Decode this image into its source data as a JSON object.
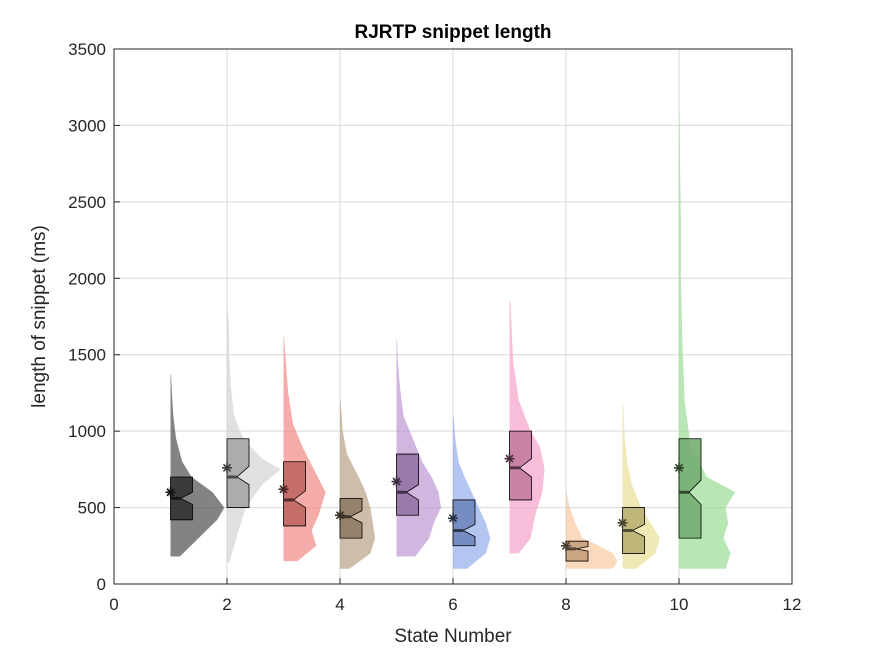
{
  "chart_data": {
    "type": "violin",
    "title": "RJRTP snippet length",
    "xlabel": "State Number",
    "ylabel": "length of snippet (ms)",
    "xlim": [
      0,
      12
    ],
    "ylim": [
      0,
      3500
    ],
    "xticks": [
      "0",
      "2",
      "4",
      "6",
      "8",
      "10",
      "12"
    ],
    "yticks": [
      "0",
      "500",
      "1000",
      "1500",
      "2000",
      "2500",
      "3000",
      "3500"
    ],
    "grid": true,
    "categories": [
      1,
      2,
      3,
      4,
      5,
      6,
      7,
      8,
      9,
      10
    ],
    "series": [
      {
        "x": 1,
        "color": "#404040",
        "min": 180,
        "max": 1370,
        "mean": 600,
        "median": 560,
        "q1": 420,
        "q3": 700,
        "notch_low": 520,
        "notch_high": 600,
        "density": [
          [
            180,
            0.2
          ],
          [
            300,
            0.6
          ],
          [
            420,
            1.0
          ],
          [
            500,
            1.15
          ],
          [
            600,
            0.9
          ],
          [
            700,
            0.45
          ],
          [
            800,
            0.25
          ],
          [
            950,
            0.12
          ],
          [
            1100,
            0.06
          ],
          [
            1250,
            0.03
          ],
          [
            1370,
            0.01
          ]
        ]
      },
      {
        "x": 2,
        "color": "#cfcfcf",
        "min": 140,
        "max": 1800,
        "mean": 760,
        "median": 700,
        "q1": 500,
        "q3": 950,
        "notch_low": 650,
        "notch_high": 770,
        "density": [
          [
            140,
            0.05
          ],
          [
            300,
            0.2
          ],
          [
            500,
            0.4
          ],
          [
            650,
            0.75
          ],
          [
            750,
            1.15
          ],
          [
            820,
            0.75
          ],
          [
            950,
            0.35
          ],
          [
            1100,
            0.15
          ],
          [
            1300,
            0.08
          ],
          [
            1500,
            0.05
          ],
          [
            1700,
            0.04
          ],
          [
            1800,
            0.01
          ]
        ]
      },
      {
        "x": 3,
        "color": "#f07f7a",
        "min": 150,
        "max": 1620,
        "mean": 620,
        "median": 550,
        "q1": 380,
        "q3": 800,
        "notch_low": 500,
        "notch_high": 610,
        "density": [
          [
            150,
            0.3
          ],
          [
            250,
            0.7
          ],
          [
            350,
            0.6
          ],
          [
            450,
            0.75
          ],
          [
            600,
            0.9
          ],
          [
            750,
            0.65
          ],
          [
            900,
            0.4
          ],
          [
            1050,
            0.2
          ],
          [
            1250,
            0.1
          ],
          [
            1450,
            0.05
          ],
          [
            1620,
            0.01
          ]
        ]
      },
      {
        "x": 4,
        "color": "#b39a7c",
        "min": 100,
        "max": 1200,
        "mean": 450,
        "median": 440,
        "q1": 300,
        "q3": 560,
        "notch_low": 400,
        "notch_high": 480,
        "density": [
          [
            100,
            0.2
          ],
          [
            200,
            0.65
          ],
          [
            300,
            0.75
          ],
          [
            400,
            0.7
          ],
          [
            500,
            0.65
          ],
          [
            600,
            0.55
          ],
          [
            700,
            0.4
          ],
          [
            850,
            0.15
          ],
          [
            1000,
            0.06
          ],
          [
            1200,
            0.01
          ]
        ]
      },
      {
        "x": 5,
        "color": "#b98fd0",
        "min": 180,
        "max": 1600,
        "mean": 670,
        "median": 600,
        "q1": 450,
        "q3": 850,
        "notch_low": 550,
        "notch_high": 650,
        "density": [
          [
            180,
            0.4
          ],
          [
            300,
            0.7
          ],
          [
            400,
            0.8
          ],
          [
            500,
            0.95
          ],
          [
            600,
            0.9
          ],
          [
            700,
            0.75
          ],
          [
            800,
            0.55
          ],
          [
            950,
            0.35
          ],
          [
            1100,
            0.15
          ],
          [
            1300,
            0.07
          ],
          [
            1450,
            0.03
          ],
          [
            1600,
            0.01
          ]
        ]
      },
      {
        "x": 6,
        "color": "#8aa8ea",
        "min": 100,
        "max": 1100,
        "mean": 430,
        "median": 350,
        "q1": 250,
        "q3": 550,
        "notch_low": 310,
        "notch_high": 390,
        "density": [
          [
            100,
            0.3
          ],
          [
            200,
            0.7
          ],
          [
            300,
            0.8
          ],
          [
            400,
            0.7
          ],
          [
            500,
            0.55
          ],
          [
            600,
            0.4
          ],
          [
            700,
            0.25
          ],
          [
            800,
            0.12
          ],
          [
            950,
            0.05
          ],
          [
            1100,
            0.01
          ]
        ]
      },
      {
        "x": 7,
        "color": "#f59ac4",
        "min": 200,
        "max": 1850,
        "mean": 820,
        "median": 760,
        "q1": 550,
        "q3": 1000,
        "notch_low": 700,
        "notch_high": 820,
        "density": [
          [
            200,
            0.2
          ],
          [
            300,
            0.45
          ],
          [
            450,
            0.55
          ],
          [
            600,
            0.7
          ],
          [
            750,
            0.75
          ],
          [
            900,
            0.65
          ],
          [
            1000,
            0.45
          ],
          [
            1200,
            0.2
          ],
          [
            1450,
            0.08
          ],
          [
            1700,
            0.04
          ],
          [
            1850,
            0.02
          ]
        ]
      },
      {
        "x": 8,
        "color": "#f7c59a",
        "min": 100,
        "max": 600,
        "mean": 250,
        "median": 230,
        "q1": 150,
        "q3": 280,
        "notch_low": 215,
        "notch_high": 245,
        "density": [
          [
            100,
            1.0
          ],
          [
            150,
            1.1
          ],
          [
            200,
            1.0
          ],
          [
            250,
            0.7
          ],
          [
            300,
            0.35
          ],
          [
            400,
            0.2
          ],
          [
            500,
            0.08
          ],
          [
            600,
            0.01
          ]
        ]
      },
      {
        "x": 9,
        "color": "#e8dc8e",
        "min": 100,
        "max": 1180,
        "mean": 400,
        "median": 350,
        "q1": 200,
        "q3": 500,
        "notch_low": 310,
        "notch_high": 390,
        "density": [
          [
            100,
            0.3
          ],
          [
            200,
            0.7
          ],
          [
            300,
            0.8
          ],
          [
            400,
            0.6
          ],
          [
            500,
            0.4
          ],
          [
            650,
            0.2
          ],
          [
            800,
            0.1
          ],
          [
            950,
            0.05
          ],
          [
            1180,
            0.01
          ]
        ]
      },
      {
        "x": 10,
        "color": "#93d88d",
        "min": 100,
        "max": 3100,
        "mean": 760,
        "median": 600,
        "q1": 300,
        "q3": 950,
        "notch_low": 520,
        "notch_high": 680,
        "density": [
          [
            100,
            1.0
          ],
          [
            200,
            1.1
          ],
          [
            300,
            0.95
          ],
          [
            400,
            1.05
          ],
          [
            500,
            1.0
          ],
          [
            600,
            1.2
          ],
          [
            700,
            0.6
          ],
          [
            900,
            0.25
          ],
          [
            1200,
            0.12
          ],
          [
            1600,
            0.07
          ],
          [
            2000,
            0.04
          ],
          [
            2400,
            0.04
          ],
          [
            2800,
            0.02
          ],
          [
            3100,
            0.01
          ]
        ]
      }
    ]
  }
}
